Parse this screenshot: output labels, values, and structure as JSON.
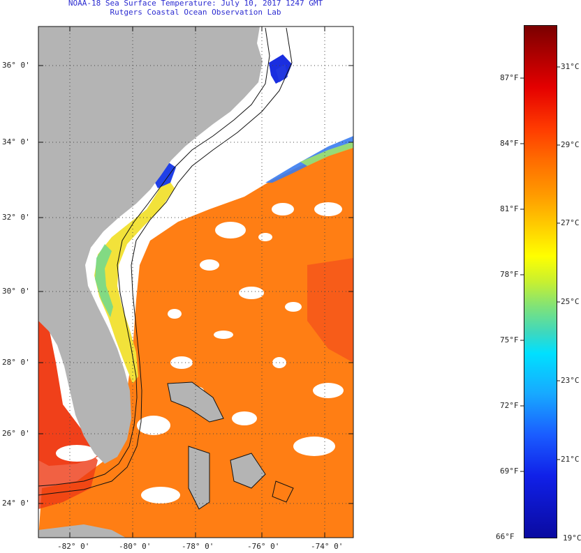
{
  "title": {
    "line1": "NOAA-18 Sea Surface Temperature:  July 10, 2017 1247 GMT",
    "line2": "Rutgers Coastal Ocean Observation Lab"
  },
  "map": {
    "lat_labels": [
      "36° 0'",
      "34° 0'",
      "32° 0'",
      "30° 0'",
      "28° 0'",
      "26° 0'",
      "24° 0'"
    ],
    "lon_labels": [
      "-82° 0'",
      "-80° 0'",
      "-78° 0'",
      "-76° 0'",
      "-74° 0'"
    ],
    "colors": {
      "land": "#b4b4b4",
      "cloud": "#ffffff",
      "warm": "#ff7e14",
      "hot": "#f43a14",
      "coastal": "#ffd21e",
      "cool": "#00b4ff",
      "cold": "#1a2ee0"
    }
  },
  "colorbar": {
    "fahrenheit": [
      "87°F",
      "84°F",
      "81°F",
      "78°F",
      "75°F",
      "72°F",
      "69°F",
      "66°F"
    ],
    "celsius": [
      "31°C",
      "29°C",
      "27°C",
      "25°C",
      "23°C",
      "21°C",
      "19°C"
    ]
  }
}
